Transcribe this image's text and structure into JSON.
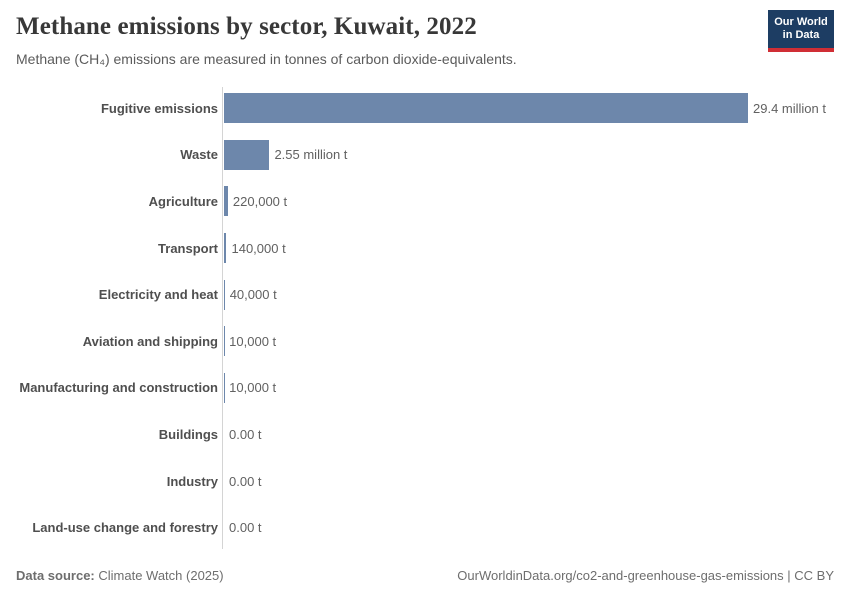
{
  "header": {
    "title": "Methane emissions by sector, Kuwait, 2022",
    "subtitle": "Methane (CH₄) emissions are measured in tonnes of carbon dioxide-equivalents.",
    "logo": {
      "line1": "Our World",
      "line2": "in Data"
    }
  },
  "chart_data": {
    "type": "bar",
    "orientation": "horizontal",
    "title": "Methane emissions by sector, Kuwait, 2022",
    "unit": "tonnes of carbon dioxide-equivalents",
    "categories": [
      "Fugitive emissions",
      "Waste",
      "Agriculture",
      "Transport",
      "Electricity and heat",
      "Aviation and shipping",
      "Manufacturing and construction",
      "Buildings",
      "Industry",
      "Land-use change and forestry"
    ],
    "values": [
      29400000,
      2550000,
      220000,
      140000,
      40000,
      10000,
      10000,
      0,
      0,
      0
    ],
    "value_labels": [
      "29.4 million t",
      "2.55 million t",
      "220,000 t",
      "140,000 t",
      "40,000 t",
      "10,000 t",
      "10,000 t",
      "0.00 t",
      "0.00 t",
      "0.00 t"
    ],
    "xlim": [
      0,
      29400000
    ],
    "bar_color": "#6d87ab",
    "grid": false,
    "legend": "none"
  },
  "footer": {
    "datasource_label": "Data source:",
    "datasource_value": " Climate Watch (2025)",
    "note_right": "OurWorldinData.org/co2-and-greenhouse-gas-emissions | CC BY"
  },
  "colors": {
    "bar": "#6d87ab",
    "logo_bg": "#1d3d63",
    "logo_stripe": "#d02e35",
    "title_text": "#383838",
    "subtitle_text": "#5b5b5b",
    "axis_line": "#d4d4d4"
  }
}
